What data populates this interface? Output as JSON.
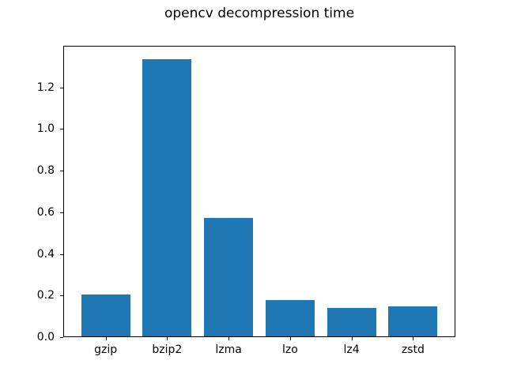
{
  "chart_data": {
    "type": "bar",
    "title": "opencv decompression time",
    "categories": [
      "gzip",
      "bzip2",
      "lzma",
      "lzo",
      "lz4",
      "zstd"
    ],
    "values": [
      0.2,
      1.332,
      0.571,
      0.175,
      0.136,
      0.145
    ],
    "xlabel": "",
    "ylabel": "",
    "ylim": [
      0,
      1.4
    ],
    "yticks": [
      0.0,
      0.2,
      0.4,
      0.6,
      0.8,
      1.0,
      1.2
    ],
    "ytick_labels": [
      "0.0",
      "0.2",
      "0.4",
      "0.6",
      "0.8",
      "1.0",
      "1.2"
    ],
    "grid": false,
    "legend": null,
    "colors": {
      "bar": "#1f77b4",
      "axis": "#000000",
      "text": "#000000",
      "background": "#ffffff"
    }
  }
}
